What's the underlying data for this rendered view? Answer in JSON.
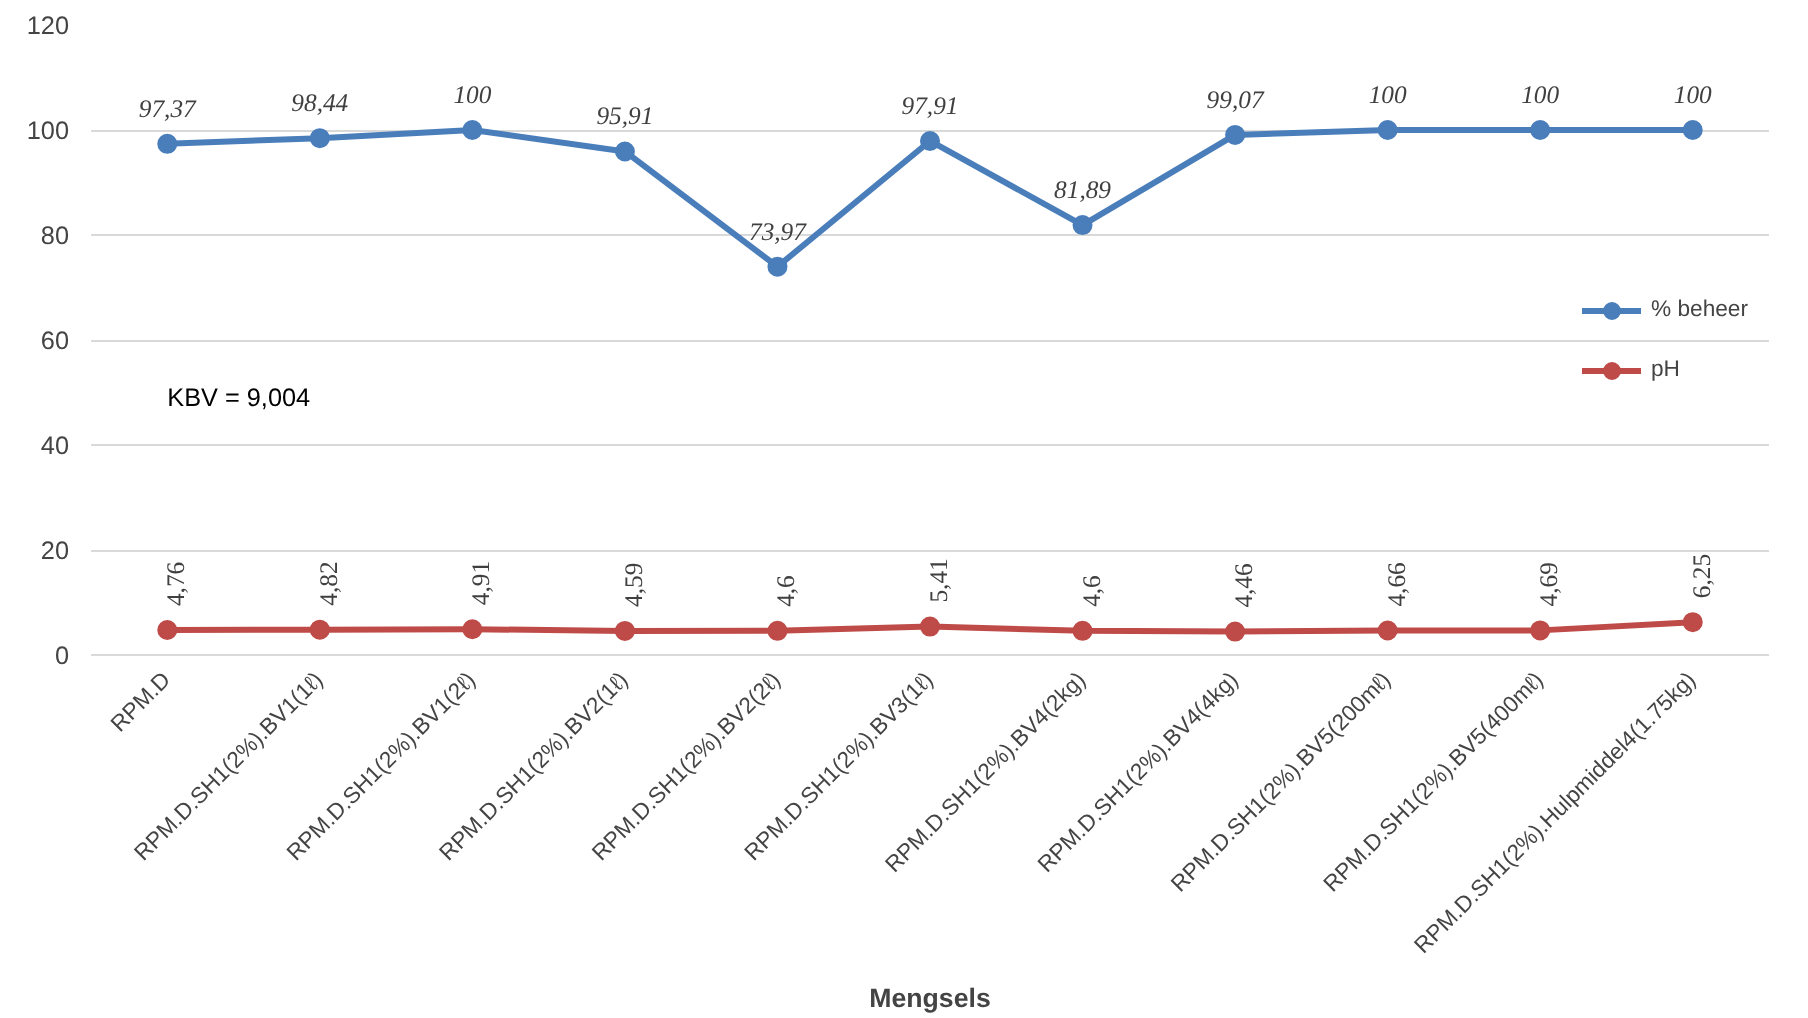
{
  "chart_data": {
    "type": "line",
    "xlabel": "Mengsels",
    "categories": [
      "RPM.D",
      "RPM.D.SH1(2%).BV1(1ℓ)",
      "RPM.D.SH1(2%).BV1(2ℓ)",
      "RPM.D.SH1(2%).BV2(1ℓ)",
      "RPM.D.SH1(2%).BV2(2ℓ)",
      "RPM.D.SH1(2%).BV3(1ℓ)",
      "RPM.D.SH1(2%).BV4(2kg)",
      "RPM.D.SH1(2%).BV4(4kg)",
      "RPM.D.SH1(2%).BV5(200mℓ)",
      "RPM.D.SH1(2%).BV5(400mℓ)",
      "RPM.D.SH1(2%).Hulpmiddel4(1.75kg)"
    ],
    "series": [
      {
        "name": "% beheer",
        "color": "#4a7ebb",
        "values": [
          97.37,
          98.44,
          100,
          95.91,
          73.97,
          97.91,
          81.89,
          99.07,
          100,
          100,
          100
        ],
        "value_labels": [
          "97,37",
          "98,44",
          "100",
          "95,91",
          "73,97",
          "97,91",
          "81,89",
          "99,07",
          "100",
          "100",
          "100"
        ]
      },
      {
        "name": "pH",
        "color": "#be4b48",
        "values": [
          4.76,
          4.82,
          4.91,
          4.59,
          4.6,
          5.41,
          4.6,
          4.46,
          4.66,
          4.69,
          6.25
        ],
        "value_labels": [
          "4,76",
          "4,82",
          "4,91",
          "4,59",
          "4,6",
          "5,41",
          "4,6",
          "4,46",
          "4,66",
          "4,69",
          "6,25"
        ]
      }
    ],
    "ylim": [
      0,
      120
    ],
    "yticks": [
      0,
      20,
      40,
      60,
      80,
      100,
      120
    ],
    "annotations": [
      "KBV = 9,004"
    ],
    "grid": "y",
    "legend": "right",
    "marker": "circle",
    "line_style": "solid"
  }
}
